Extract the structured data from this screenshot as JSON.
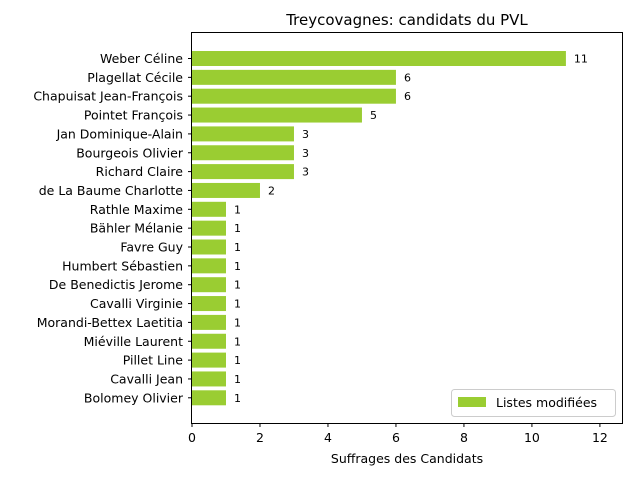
{
  "chart_data": {
    "type": "bar",
    "orientation": "horizontal",
    "title": "Treycovagnes: candidats du PVL",
    "xlabel": "Suffrages des Candidats",
    "ylabel": "",
    "xlim": [
      0,
      12.65
    ],
    "xticks": [
      0,
      2,
      4,
      6,
      8,
      10,
      12
    ],
    "grid": false,
    "legend_placement": "lower-right",
    "bar_color": "#9acd32",
    "categories": [
      "Weber Céline",
      "Plagellat Cécile",
      "Chapuisat Jean-François",
      "Pointet François",
      "Jan Dominique-Alain",
      "Bourgeois Olivier",
      "Richard Claire",
      "de La Baume Charlotte",
      "Rathle Maxime",
      "Bähler Mélanie",
      "Favre Guy",
      "Humbert Sébastien",
      "De Benedictis Jerome",
      "Cavalli Virginie",
      "Morandi-Bettex Laetitia",
      "Miéville Laurent",
      "Pillet Line",
      "Cavalli Jean",
      "Bolomey Olivier"
    ],
    "series": [
      {
        "name": "Listes modifiées",
        "values": [
          11,
          6,
          6,
          5,
          3,
          3,
          3,
          2,
          1,
          1,
          1,
          1,
          1,
          1,
          1,
          1,
          1,
          1,
          1
        ]
      }
    ]
  }
}
